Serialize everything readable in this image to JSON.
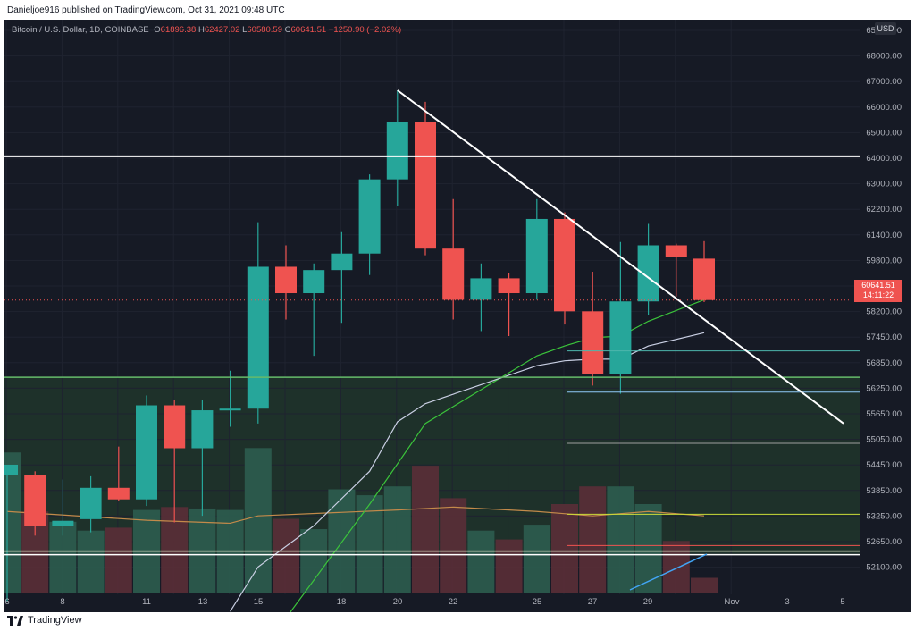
{
  "header": {
    "published": "Danieljoe916 published on TradingView.com, Oct 31, 2021 09:48 UTC"
  },
  "legend": {
    "symbol": "Bitcoin / U.S. Dollar, 1D, COINBASE",
    "open_label": "O",
    "open": "61896.38",
    "high_label": "H",
    "high": "62427.02",
    "low_label": "L",
    "low": "60580.59",
    "close_label": "C",
    "close": "60641.51",
    "change": "−1250.90 (−2.02%)"
  },
  "currency_button": "USD",
  "price_badge": {
    "price": "60641.51",
    "countdown": "14:11:22"
  },
  "footer": {
    "brand": "TradingView"
  },
  "colors": {
    "up": "#26a69a",
    "down": "#ef5350",
    "bg": "#161a25",
    "ema_short": "#3bc43b",
    "ema_long": "#c9cfe3",
    "volume_ma": "#c38a4a"
  },
  "chart_data": {
    "type": "candlestick",
    "symbol": "Bitcoin / U.S. Dollar",
    "interval": "1D",
    "exchange": "COINBASE",
    "y_axis_labels": [
      "65950.00",
      "68000.00",
      "67000.00",
      "66000.00",
      "65000.00",
      "64000.00",
      "63000.00",
      "62200.00",
      "61400.00",
      "59800.00",
      "59000.00",
      "58200.00",
      "57450.00",
      "56850.00",
      "56250.00",
      "55650.00",
      "55050.00",
      "54450.00",
      "53850.00",
      "53250.00",
      "52650.00",
      "52100.00"
    ],
    "x_axis_labels": [
      "6",
      "8",
      "11",
      "13",
      "15",
      "18",
      "20",
      "22",
      "25",
      "27",
      "29",
      "Nov",
      "3",
      "5"
    ],
    "candles": [
      {
        "date": "Oct 6",
        "open": 55350,
        "high": 55500,
        "low": 51500,
        "close": 55650,
        "color": "up"
      },
      {
        "date": "Oct 7",
        "open": 55350,
        "high": 55450,
        "low": 53500,
        "close": 53800,
        "color": "down"
      },
      {
        "date": "Oct 8",
        "open": 53800,
        "high": 55200,
        "low": 53500,
        "close": 53950,
        "color": "up"
      },
      {
        "date": "Oct 9",
        "open": 54000,
        "high": 55300,
        "low": 53600,
        "close": 54950,
        "color": "up"
      },
      {
        "date": "Oct 10",
        "open": 54950,
        "high": 56200,
        "low": 54550,
        "close": 54600,
        "color": "down"
      },
      {
        "date": "Oct 11",
        "open": 54600,
        "high": 57750,
        "low": 54400,
        "close": 57450,
        "color": "up"
      },
      {
        "date": "Oct 12",
        "open": 57450,
        "high": 57600,
        "low": 53900,
        "close": 56150,
        "color": "down"
      },
      {
        "date": "Oct 13",
        "open": 56150,
        "high": 57600,
        "low": 54100,
        "close": 57300,
        "color": "up"
      },
      {
        "date": "Oct 14",
        "open": 57300,
        "high": 58500,
        "low": 56800,
        "close": 57350,
        "color": "up"
      },
      {
        "date": "Oct 15",
        "open": 57350,
        "high": 63000,
        "low": 56900,
        "close": 61650,
        "color": "up"
      },
      {
        "date": "Oct 16",
        "open": 61650,
        "high": 62300,
        "low": 60050,
        "close": 60850,
        "color": "down"
      },
      {
        "date": "Oct 17",
        "open": 60850,
        "high": 61750,
        "low": 58950,
        "close": 61550,
        "color": "up"
      },
      {
        "date": "Oct 18",
        "open": 61550,
        "high": 62700,
        "low": 59950,
        "close": 62050,
        "color": "up"
      },
      {
        "date": "Oct 19",
        "open": 62050,
        "high": 64450,
        "low": 61400,
        "close": 64300,
        "color": "up"
      },
      {
        "date": "Oct 20",
        "open": 64300,
        "high": 67000,
        "low": 63500,
        "close": 66050,
        "color": "up"
      },
      {
        "date": "Oct 21",
        "open": 66050,
        "high": 66650,
        "low": 62000,
        "close": 62200,
        "color": "down"
      },
      {
        "date": "Oct 22",
        "open": 62200,
        "high": 63700,
        "low": 60050,
        "close": 60650,
        "color": "down"
      },
      {
        "date": "Oct 23",
        "open": 60650,
        "high": 61750,
        "low": 59700,
        "close": 61300,
        "color": "up"
      },
      {
        "date": "Oct 24",
        "open": 61300,
        "high": 61450,
        "low": 59550,
        "close": 60850,
        "color": "down"
      },
      {
        "date": "Oct 25",
        "open": 60850,
        "high": 63700,
        "low": 60650,
        "close": 63100,
        "color": "up"
      },
      {
        "date": "Oct 26",
        "open": 63100,
        "high": 63300,
        "low": 59900,
        "close": 60300,
        "color": "down"
      },
      {
        "date": "Oct 27",
        "open": 60300,
        "high": 61500,
        "low": 58050,
        "close": 58400,
        "color": "down"
      },
      {
        "date": "Oct 28",
        "open": 58400,
        "high": 62400,
        "low": 57800,
        "close": 60600,
        "color": "up"
      },
      {
        "date": "Oct 29",
        "open": 60600,
        "high": 62950,
        "low": 60200,
        "close": 62300,
        "color": "up"
      },
      {
        "date": "Oct 30",
        "open": 62300,
        "high": 62350,
        "low": 60750,
        "close": 61950,
        "color": "down"
      },
      {
        "date": "Oct 31",
        "open": 61896.38,
        "high": 62427.02,
        "low": 60580.59,
        "close": 60641.51,
        "color": "down"
      }
    ],
    "volume_relative": [
      0.95,
      0.55,
      0.48,
      0.42,
      0.44,
      0.56,
      0.58,
      0.57,
      0.56,
      0.98,
      0.5,
      0.43,
      0.7,
      0.66,
      0.72,
      0.86,
      0.64,
      0.42,
      0.36,
      0.46,
      0.6,
      0.72,
      0.72,
      0.6,
      0.35,
      0.1
    ],
    "ema_short": [
      [
        16,
        51000
      ],
      [
        19,
        54450
      ],
      [
        21,
        56900
      ],
      [
        25,
        58950
      ],
      [
        26,
        59250
      ],
      [
        27,
        59500
      ],
      [
        28,
        59550
      ],
      [
        29,
        60000
      ],
      [
        31,
        60650
      ]
    ],
    "ema_long": [
      [
        14,
        51200
      ],
      [
        15,
        52550
      ],
      [
        17,
        53800
      ],
      [
        19,
        55450
      ],
      [
        20,
        56950
      ],
      [
        21,
        57500
      ],
      [
        25,
        58650
      ],
      [
        26,
        58800
      ],
      [
        27,
        58850
      ],
      [
        28,
        58850
      ],
      [
        29,
        59250
      ],
      [
        31,
        59650
      ]
    ],
    "volume_ma": [
      [
        6,
        0.55
      ],
      [
        11,
        0.49
      ],
      [
        14,
        0.47
      ],
      [
        15,
        0.52
      ],
      [
        20,
        0.56
      ],
      [
        22,
        0.58
      ],
      [
        25,
        0.55
      ],
      [
        27,
        0.52
      ],
      [
        29,
        0.55
      ],
      [
        31,
        0.52
      ]
    ],
    "annotations": {
      "resistance_white_level": 65000,
      "support_green_level": 58300,
      "support_low_white_level": 52950,
      "trendline": {
        "from": [
          20,
          67000
        ],
        "to": [
          36,
          56900
        ]
      },
      "horizontal_rays": [
        {
          "level": 59100,
          "color": "#4db6ac",
          "from_day": 26
        },
        {
          "level": 57850,
          "color": "#90caf9",
          "from_day": 26
        },
        {
          "level": 56300,
          "color": "#9e9e9e",
          "from_day": 26
        },
        {
          "level": 54150,
          "color": "#cddc39",
          "from_day": 26
        },
        {
          "level": 53200,
          "color": "#ef5350",
          "from_day": 26
        }
      ]
    }
  }
}
